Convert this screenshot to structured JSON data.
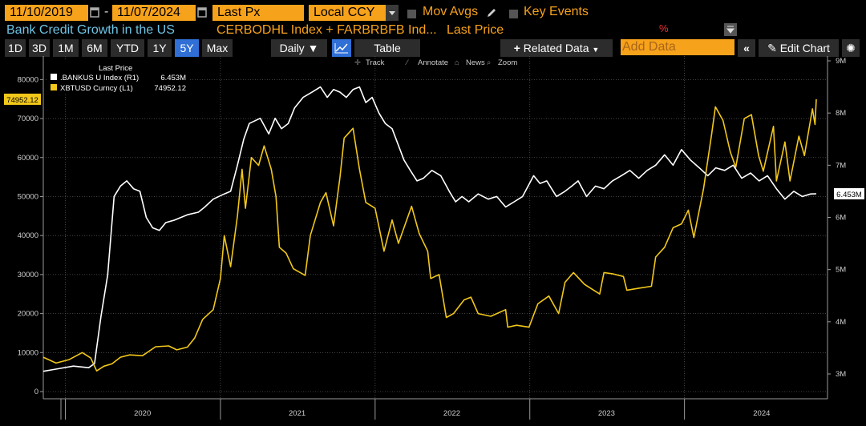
{
  "header": {
    "start_date": "11/10/2019",
    "end_date": "11/07/2024",
    "date_sep": "-",
    "field": "Last Px",
    "currency": "Local CCY",
    "mov_avgs": "Mov Avgs",
    "key_events": "Key Events"
  },
  "title_row": {
    "chart_title": "Bank Credit Growth in the US",
    "series_desc": "CERBODHL Index + FARBRBFB Ind...",
    "price_label": "Last Price",
    "percent_icon": "%"
  },
  "toolbar": {
    "periods": [
      "1D",
      "3D",
      "1M",
      "6M",
      "YTD",
      "1Y",
      "5Y",
      "Max"
    ],
    "active_period": "5Y",
    "frequency": "Daily",
    "table": "Table",
    "related_data": "Related Data",
    "add_data_placeholder": "Add Data",
    "edit_chart": "Edit Chart"
  },
  "chart_tools": [
    "Track",
    "Annotate",
    "News",
    "Zoom"
  ],
  "colors": {
    "bankus": "#ffffff",
    "xbtusd": "#f2c81a",
    "accent": "#f7a21b",
    "active": "#2f6fd6"
  },
  "chart_data": {
    "type": "line",
    "legend_title": "Last Price",
    "legend_position": "top-left",
    "grid": true,
    "x_ticks": [
      "2020",
      "2021",
      "2022",
      "2023",
      "2024"
    ],
    "x_range": [
      "2019-11-10",
      "2024-11-07"
    ],
    "left_axis": {
      "range": [
        0,
        85000
      ],
      "ticks": [
        "0",
        "10000",
        "20000",
        "30000",
        "40000",
        "50000",
        "60000",
        "70000",
        "80000"
      ]
    },
    "right_axis": {
      "range": [
        2.7,
        9.0
      ],
      "ticks": [
        "3M",
        "4M",
        "5M",
        "6M",
        "7M",
        "8M",
        "9M"
      ]
    },
    "series": [
      {
        "name": ".BANKUS U Index (R1)",
        "last_value": "6.453M",
        "last_label": "6.453M",
        "axis": "right",
        "points": [
          [
            "2019-11-10",
            3.05
          ],
          [
            "2019-12-15",
            3.1
          ],
          [
            "2020-01-20",
            3.15
          ],
          [
            "2020-02-25",
            3.12
          ],
          [
            "2020-03-10",
            3.2
          ],
          [
            "2020-03-25",
            4.1
          ],
          [
            "2020-04-10",
            4.9
          ],
          [
            "2020-04-25",
            6.4
          ],
          [
            "2020-05-10",
            6.6
          ],
          [
            "2020-05-25",
            6.7
          ],
          [
            "2020-06-10",
            6.55
          ],
          [
            "2020-06-25",
            6.5
          ],
          [
            "2020-07-10",
            6.0
          ],
          [
            "2020-07-25",
            5.8
          ],
          [
            "2020-08-10",
            5.75
          ],
          [
            "2020-08-25",
            5.9
          ],
          [
            "2020-09-15",
            5.95
          ],
          [
            "2020-10-15",
            6.05
          ],
          [
            "2020-11-10",
            6.1
          ],
          [
            "2020-11-25",
            6.2
          ],
          [
            "2020-12-15",
            6.35
          ],
          [
            "2021-01-10",
            6.45
          ],
          [
            "2021-01-25",
            6.5
          ],
          [
            "2021-02-10",
            7.0
          ],
          [
            "2021-02-25",
            7.5
          ],
          [
            "2021-03-10",
            7.8
          ],
          [
            "2021-04-05",
            7.9
          ],
          [
            "2021-04-25",
            7.6
          ],
          [
            "2021-05-10",
            7.9
          ],
          [
            "2021-05-25",
            7.7
          ],
          [
            "2021-06-10",
            7.8
          ],
          [
            "2021-06-25",
            8.1
          ],
          [
            "2021-07-15",
            8.3
          ],
          [
            "2021-08-05",
            8.4
          ],
          [
            "2021-08-25",
            8.5
          ],
          [
            "2021-09-10",
            8.3
          ],
          [
            "2021-09-25",
            8.45
          ],
          [
            "2021-10-10",
            8.4
          ],
          [
            "2021-10-25",
            8.3
          ],
          [
            "2021-11-10",
            8.45
          ],
          [
            "2021-11-25",
            8.5
          ],
          [
            "2021-12-10",
            8.2
          ],
          [
            "2021-12-25",
            8.3
          ],
          [
            "2022-01-10",
            8.0
          ],
          [
            "2022-01-25",
            7.8
          ],
          [
            "2022-02-10",
            7.7
          ],
          [
            "2022-03-10",
            7.1
          ],
          [
            "2022-03-25",
            6.9
          ],
          [
            "2022-04-10",
            6.7
          ],
          [
            "2022-04-25",
            6.75
          ],
          [
            "2022-05-15",
            6.9
          ],
          [
            "2022-06-05",
            6.8
          ],
          [
            "2022-06-25",
            6.5
          ],
          [
            "2022-07-10",
            6.3
          ],
          [
            "2022-07-25",
            6.4
          ],
          [
            "2022-08-10",
            6.3
          ],
          [
            "2022-09-01",
            6.45
          ],
          [
            "2022-09-25",
            6.35
          ],
          [
            "2022-10-15",
            6.4
          ],
          [
            "2022-11-05",
            6.2
          ],
          [
            "2022-11-25",
            6.3
          ],
          [
            "2022-12-15",
            6.4
          ],
          [
            "2023-01-10",
            6.8
          ],
          [
            "2023-01-25",
            6.65
          ],
          [
            "2023-02-10",
            6.7
          ],
          [
            "2023-03-05",
            6.4
          ],
          [
            "2023-03-25",
            6.5
          ],
          [
            "2023-04-10",
            6.6
          ],
          [
            "2023-04-25",
            6.7
          ],
          [
            "2023-05-15",
            6.4
          ],
          [
            "2023-06-05",
            6.6
          ],
          [
            "2023-06-25",
            6.55
          ],
          [
            "2023-07-15",
            6.7
          ],
          [
            "2023-08-05",
            6.8
          ],
          [
            "2023-08-25",
            6.9
          ],
          [
            "2023-09-15",
            6.75
          ],
          [
            "2023-10-05",
            6.9
          ],
          [
            "2023-10-25",
            7.0
          ],
          [
            "2023-11-15",
            7.2
          ],
          [
            "2023-12-05",
            7.0
          ],
          [
            "2023-12-25",
            7.3
          ],
          [
            "2024-01-15",
            7.1
          ],
          [
            "2024-02-05",
            6.95
          ],
          [
            "2024-02-25",
            6.8
          ],
          [
            "2024-03-15",
            6.95
          ],
          [
            "2024-04-05",
            6.9
          ],
          [
            "2024-04-25",
            7.0
          ],
          [
            "2024-05-15",
            6.75
          ],
          [
            "2024-06-05",
            6.85
          ],
          [
            "2024-06-25",
            6.7
          ],
          [
            "2024-07-15",
            6.8
          ],
          [
            "2024-08-05",
            6.55
          ],
          [
            "2024-08-25",
            6.35
          ],
          [
            "2024-09-15",
            6.5
          ],
          [
            "2024-10-05",
            6.4
          ],
          [
            "2024-10-25",
            6.45
          ],
          [
            "2024-11-07",
            6.453
          ]
        ]
      },
      {
        "name": "XBTUSD Curncy (L1)",
        "last_value": "74952.12",
        "last_label": "74952.12",
        "axis": "left",
        "points": [
          [
            "2019-11-10",
            8800
          ],
          [
            "2019-12-10",
            7300
          ],
          [
            "2020-01-10",
            8200
          ],
          [
            "2020-02-10",
            10000
          ],
          [
            "2020-03-01",
            8600
          ],
          [
            "2020-03-15",
            5300
          ],
          [
            "2020-04-01",
            6500
          ],
          [
            "2020-04-20",
            7100
          ],
          [
            "2020-05-10",
            8800
          ],
          [
            "2020-06-01",
            9400
          ],
          [
            "2020-07-01",
            9200
          ],
          [
            "2020-08-01",
            11500
          ],
          [
            "2020-09-01",
            11700
          ],
          [
            "2020-09-20",
            10700
          ],
          [
            "2020-10-15",
            11400
          ],
          [
            "2020-11-01",
            13700
          ],
          [
            "2020-11-20",
            18500
          ],
          [
            "2020-12-15",
            21000
          ],
          [
            "2021-01-01",
            29000
          ],
          [
            "2021-01-10",
            40000
          ],
          [
            "2021-01-25",
            32000
          ],
          [
            "2021-02-10",
            45000
          ],
          [
            "2021-02-21",
            57000
          ],
          [
            "2021-03-01",
            47000
          ],
          [
            "2021-03-15",
            60000
          ],
          [
            "2021-04-01",
            58000
          ],
          [
            "2021-04-14",
            63000
          ],
          [
            "2021-05-01",
            57000
          ],
          [
            "2021-05-12",
            50000
          ],
          [
            "2021-05-20",
            37000
          ],
          [
            "2021-06-05",
            35500
          ],
          [
            "2021-06-22",
            31500
          ],
          [
            "2021-07-20",
            29800
          ],
          [
            "2021-08-01",
            40000
          ],
          [
            "2021-08-25",
            48500
          ],
          [
            "2021-09-07",
            51000
          ],
          [
            "2021-09-25",
            42500
          ],
          [
            "2021-10-10",
            55000
          ],
          [
            "2021-10-20",
            65000
          ],
          [
            "2021-11-10",
            67500
          ],
          [
            "2021-11-25",
            57000
          ],
          [
            "2021-12-10",
            48500
          ],
          [
            "2022-01-01",
            47000
          ],
          [
            "2022-01-22",
            36000
          ],
          [
            "2022-02-10",
            44000
          ],
          [
            "2022-02-25",
            38000
          ],
          [
            "2022-03-28",
            47500
          ],
          [
            "2022-04-15",
            40500
          ],
          [
            "2022-05-05",
            36000
          ],
          [
            "2022-05-12",
            29000
          ],
          [
            "2022-06-01",
            30000
          ],
          [
            "2022-06-18",
            19000
          ],
          [
            "2022-07-05",
            20000
          ],
          [
            "2022-07-30",
            23500
          ],
          [
            "2022-08-15",
            24200
          ],
          [
            "2022-09-01",
            20000
          ],
          [
            "2022-10-01",
            19300
          ],
          [
            "2022-11-05",
            21000
          ],
          [
            "2022-11-10",
            16500
          ],
          [
            "2022-12-01",
            17000
          ],
          [
            "2022-12-30",
            16500
          ],
          [
            "2023-01-20",
            22500
          ],
          [
            "2023-02-15",
            24500
          ],
          [
            "2023-03-10",
            20000
          ],
          [
            "2023-03-25",
            28000
          ],
          [
            "2023-04-14",
            30500
          ],
          [
            "2023-05-10",
            27500
          ],
          [
            "2023-06-15",
            25000
          ],
          [
            "2023-06-25",
            30500
          ],
          [
            "2023-07-15",
            30200
          ],
          [
            "2023-08-10",
            29500
          ],
          [
            "2023-08-18",
            26000
          ],
          [
            "2023-09-15",
            26500
          ],
          [
            "2023-10-15",
            27000
          ],
          [
            "2023-10-25",
            34500
          ],
          [
            "2023-11-15",
            37000
          ],
          [
            "2023-12-05",
            42000
          ],
          [
            "2023-12-25",
            43000
          ],
          [
            "2024-01-10",
            46500
          ],
          [
            "2024-01-23",
            39500
          ],
          [
            "2024-02-15",
            52000
          ],
          [
            "2024-03-05",
            66000
          ],
          [
            "2024-03-14",
            73000
          ],
          [
            "2024-04-01",
            69500
          ],
          [
            "2024-04-18",
            61500
          ],
          [
            "2024-05-01",
            57500
          ],
          [
            "2024-05-21",
            70000
          ],
          [
            "2024-06-07",
            71000
          ],
          [
            "2024-06-24",
            60500
          ],
          [
            "2024-07-05",
            56500
          ],
          [
            "2024-07-29",
            68000
          ],
          [
            "2024-08-05",
            54000
          ],
          [
            "2024-08-25",
            64000
          ],
          [
            "2024-09-06",
            54000
          ],
          [
            "2024-09-27",
            65500
          ],
          [
            "2024-10-10",
            60500
          ],
          [
            "2024-10-29",
            72500
          ],
          [
            "2024-11-04",
            68500
          ],
          [
            "2024-11-07",
            74952.12
          ]
        ]
      }
    ]
  }
}
